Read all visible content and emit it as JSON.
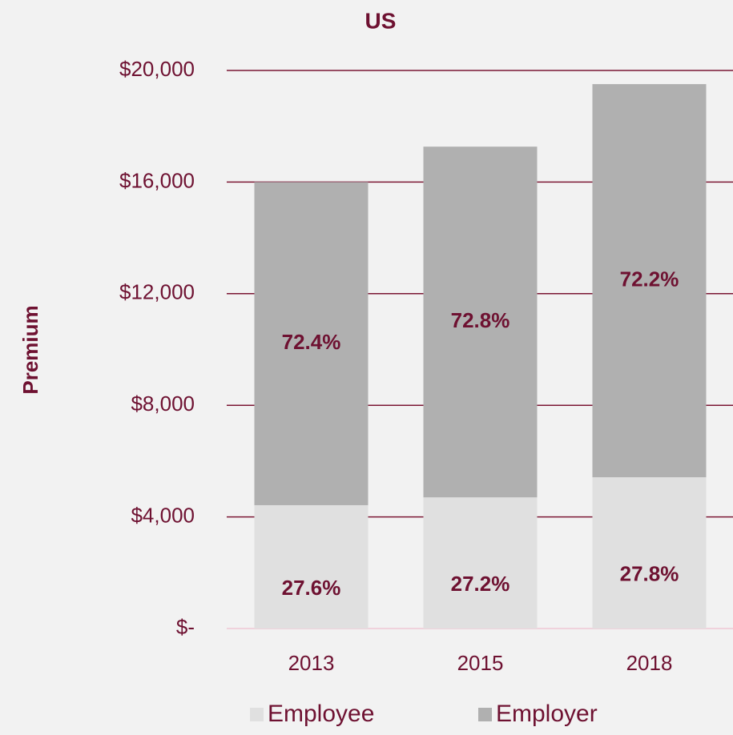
{
  "chart_data": {
    "type": "stacked_bar",
    "title": "US",
    "y_label": "Premium",
    "categories": [
      "2013",
      "2015",
      "2018"
    ],
    "series": [
      {
        "name": "Employee",
        "color": "#e0e0e0",
        "values": [
          4420,
          4700,
          5420
        ],
        "data_labels": [
          "27.6%",
          "27.2%",
          "27.8%"
        ]
      },
      {
        "name": "Employer",
        "color": "#b0b0b0",
        "values": [
          11580,
          12570,
          14090
        ],
        "data_labels": [
          "72.4%",
          "72.8%",
          "72.2%"
        ]
      }
    ],
    "ylim": [
      0,
      20000
    ],
    "yticks": [
      {
        "value": 0,
        "label": "$-"
      },
      {
        "value": 4000,
        "label": "$4,000"
      },
      {
        "value": 8000,
        "label": "$8,000"
      },
      {
        "value": 12000,
        "label": "$12,000"
      },
      {
        "value": 16000,
        "label": "$16,000"
      },
      {
        "value": 20000,
        "label": "$20,000"
      }
    ],
    "grid": true,
    "legend": "bottom"
  }
}
